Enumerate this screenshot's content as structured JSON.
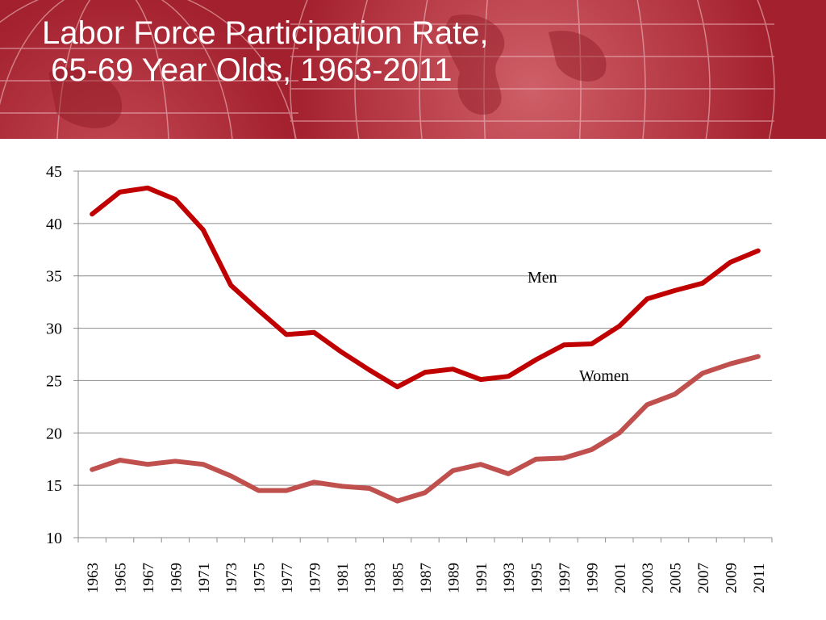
{
  "slide": {
    "title_line1": "Labor Force Participation Rate,",
    "title_line2": " 65-69 Year Olds, 1963-2011",
    "header_color": "#a3202e"
  },
  "chart_data": {
    "type": "line",
    "title": "Labor Force Participation Rate, 65-69 Year Olds, 1963-2011",
    "xlabel": "",
    "ylabel": "",
    "ylim": [
      10,
      45
    ],
    "yticks": [
      10,
      15,
      20,
      25,
      30,
      35,
      40,
      45
    ],
    "grid": true,
    "categories": [
      "1963",
      "1965",
      "1967",
      "1969",
      "1971",
      "1973",
      "1975",
      "1977",
      "1979",
      "1981",
      "1983",
      "1985",
      "1987",
      "1989",
      "1991",
      "1993",
      "1995",
      "1997",
      "1999",
      "2001",
      "2003",
      "2005",
      "2007",
      "2009",
      "2011"
    ],
    "series": [
      {
        "name": "Men",
        "color": "#c00000",
        "values": [
          40.9,
          43.0,
          43.4,
          42.3,
          39.4,
          34.1,
          31.7,
          29.4,
          29.6,
          27.7,
          26.0,
          24.4,
          25.8,
          26.1,
          25.1,
          25.4,
          27.0,
          28.4,
          28.5,
          30.2,
          32.8,
          33.6,
          34.3,
          36.3,
          37.4
        ]
      },
      {
        "name": "Women",
        "color": "#c0504d",
        "values": [
          16.5,
          17.4,
          17.0,
          17.3,
          17.0,
          15.9,
          14.5,
          14.5,
          15.3,
          14.9,
          14.7,
          13.5,
          14.3,
          16.4,
          17.0,
          16.1,
          17.5,
          17.6,
          18.4,
          20.0,
          22.7,
          23.7,
          25.7,
          26.6,
          27.3
        ]
      }
    ]
  }
}
